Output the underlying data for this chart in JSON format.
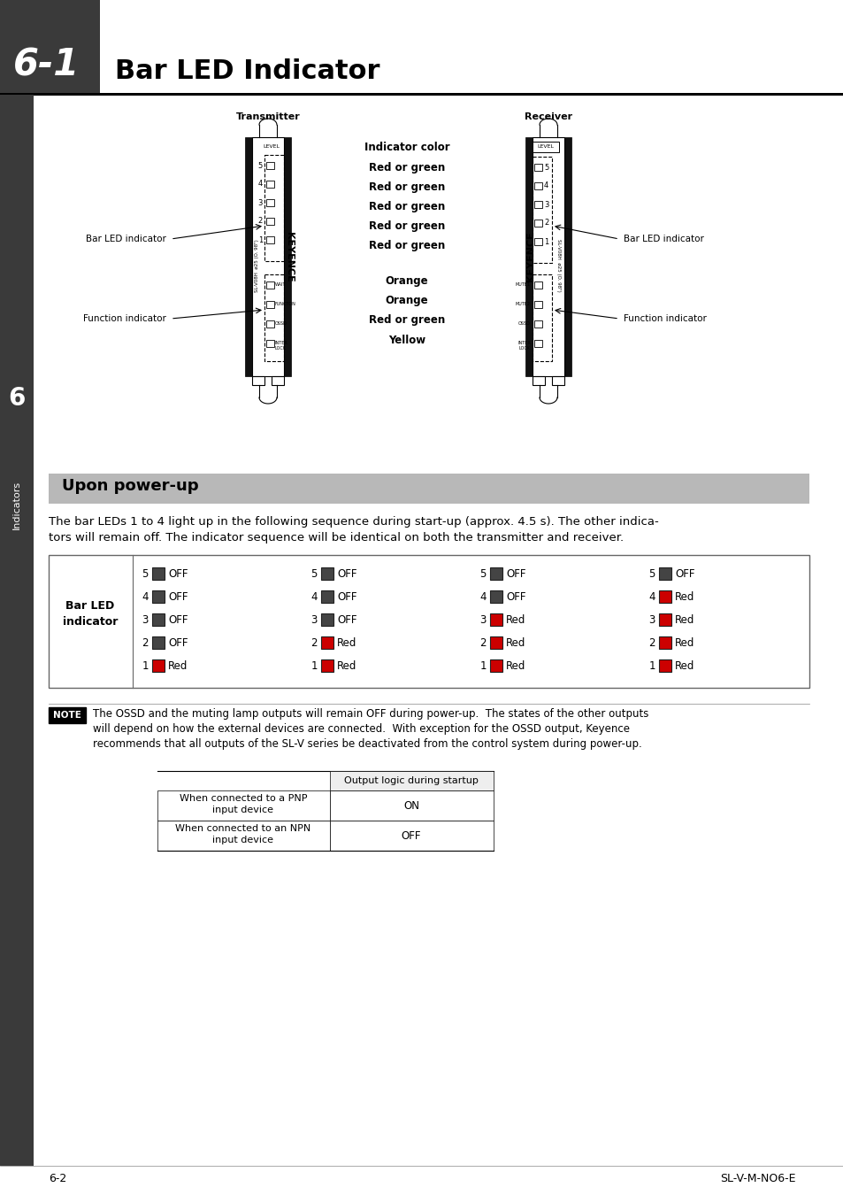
{
  "title_number": "6-1",
  "title_text": "Bar LED Indicator",
  "title_bg": "#3a3a3a",
  "section_header": "Upon power-up",
  "section_header_bg": "#b8b8b8",
  "body_text1": "The bar LEDs 1 to 4 light up in the following sequence during start-up (approx. 4.5 s). The other indica-",
  "body_text2": "tors will remain off. The indicator sequence will be identical on both the transmitter and receiver.",
  "transmitter_label": "Transmitter",
  "receiver_label": "Receiver",
  "indicator_color_label": "Indicator color",
  "bar_led_label_left": "Bar LED indicator",
  "bar_led_label_right": "Bar LED indicator",
  "func_label_left": "Function indicator",
  "func_label_right": "Function indicator",
  "color_labels": [
    "Red or green",
    "Red or green",
    "Red or green",
    "Red or green",
    "Red or green",
    "Orange",
    "Orange",
    "Red or green",
    "Yellow"
  ],
  "note_text_lines": [
    "The OSSD and the muting lamp outputs will remain OFF during power-up.  The states of the other outputs",
    "will depend on how the external devices are connected.  With exception for the OSSD output, Keyence",
    "recommends that all outputs of the SL-V series be deactivated from the control system during power-up."
  ],
  "table_col_header": "Output logic during startup",
  "table_row1_label1": "When connected to a PNP",
  "table_row1_label2": "input device",
  "table_row1_val": "ON",
  "table_row2_label1": "When connected to an NPN",
  "table_row2_label2": "input device",
  "table_row2_val": "OFF",
  "footer_left": "6-2",
  "footer_right": "SL-V-M-NO6-E",
  "side_label": "6",
  "side_label2": "Indicators",
  "seq_columns": [
    {
      "leds": [
        {
          "n": 5,
          "color": "#444444",
          "label": "OFF"
        },
        {
          "n": 4,
          "color": "#444444",
          "label": "OFF"
        },
        {
          "n": 3,
          "color": "#444444",
          "label": "OFF"
        },
        {
          "n": 2,
          "color": "#444444",
          "label": "OFF"
        },
        {
          "n": 1,
          "color": "#cc0000",
          "label": "Red"
        }
      ]
    },
    {
      "leds": [
        {
          "n": 5,
          "color": "#444444",
          "label": "OFF"
        },
        {
          "n": 4,
          "color": "#444444",
          "label": "OFF"
        },
        {
          "n": 3,
          "color": "#444444",
          "label": "OFF"
        },
        {
          "n": 2,
          "color": "#cc0000",
          "label": "Red"
        },
        {
          "n": 1,
          "color": "#cc0000",
          "label": "Red"
        }
      ]
    },
    {
      "leds": [
        {
          "n": 5,
          "color": "#444444",
          "label": "OFF"
        },
        {
          "n": 4,
          "color": "#444444",
          "label": "OFF"
        },
        {
          "n": 3,
          "color": "#cc0000",
          "label": "Red"
        },
        {
          "n": 2,
          "color": "#cc0000",
          "label": "Red"
        },
        {
          "n": 1,
          "color": "#cc0000",
          "label": "Red"
        }
      ]
    },
    {
      "leds": [
        {
          "n": 5,
          "color": "#444444",
          "label": "OFF"
        },
        {
          "n": 4,
          "color": "#cc0000",
          "label": "Red"
        },
        {
          "n": 3,
          "color": "#cc0000",
          "label": "Red"
        },
        {
          "n": 2,
          "color": "#cc0000",
          "label": "Red"
        },
        {
          "n": 1,
          "color": "#cc0000",
          "label": "Red"
        }
      ]
    }
  ]
}
